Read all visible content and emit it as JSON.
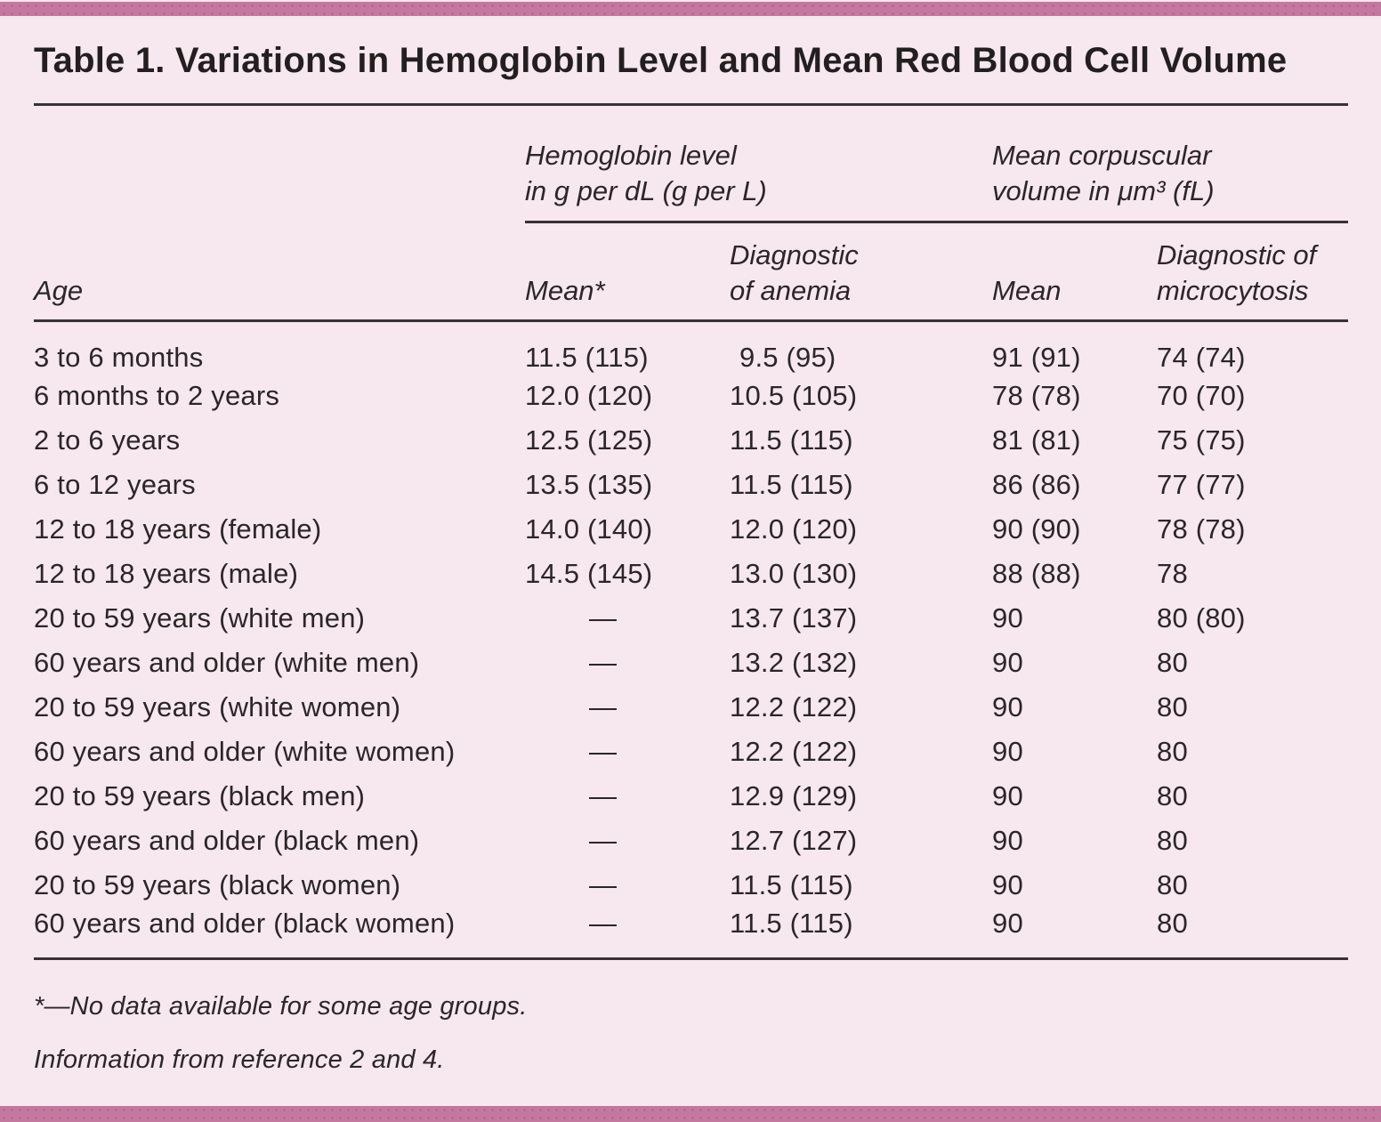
{
  "page": {
    "background_color": "#f6e8ee",
    "accent_bar_color": "#c4789f",
    "rule_color": "#383234",
    "text_color": "#2b2627"
  },
  "table": {
    "title": "Table 1. Variations in Hemoglobin Level and Mean Red Blood Cell Volume",
    "column_groups": [
      {
        "label": "Hemoglobin level\nin g per dL (g per L)"
      },
      {
        "label": "Mean corpuscular\nvolume in μm³ (fL)"
      }
    ],
    "columns": {
      "age": "Age",
      "hb_mean": "Mean*",
      "hb_diagnostic": "Diagnostic\nof anemia",
      "mcv_mean": "Mean",
      "mcv_diagnostic": "Diagnostic of\nmicrocytosis"
    },
    "rows": [
      {
        "age": "3 to 6 months",
        "hb_mean": "11.5 (115)",
        "hb_diag": "9.5 (95)",
        "mcv_mean": "91 (91)",
        "mcv_diag": "74 (74)"
      },
      {
        "age": "6 months to 2 years",
        "hb_mean": "12.0 (120)",
        "hb_diag": "10.5 (105)",
        "mcv_mean": "78 (78)",
        "mcv_diag": "70 (70)"
      },
      {
        "age": "2 to 6 years",
        "hb_mean": "12.5 (125)",
        "hb_diag": "11.5 (115)",
        "mcv_mean": "81 (81)",
        "mcv_diag": "75 (75)"
      },
      {
        "age": "6 to 12 years",
        "hb_mean": "13.5 (135)",
        "hb_diag": "11.5 (115)",
        "mcv_mean": "86 (86)",
        "mcv_diag": "77 (77)"
      },
      {
        "age": "12 to 18 years (female)",
        "hb_mean": "14.0 (140)",
        "hb_diag": "12.0 (120)",
        "mcv_mean": "90 (90)",
        "mcv_diag": "78 (78)"
      },
      {
        "age": "12 to 18 years (male)",
        "hb_mean": "14.5 (145)",
        "hb_diag": "13.0 (130)",
        "mcv_mean": "88 (88)",
        "mcv_diag": "78"
      },
      {
        "age": "20 to 59 years (white men)",
        "hb_mean": "—",
        "hb_diag": "13.7 (137)",
        "mcv_mean": "90",
        "mcv_diag": "80 (80)"
      },
      {
        "age": "60 years and older (white men)",
        "hb_mean": "—",
        "hb_diag": "13.2 (132)",
        "mcv_mean": "90",
        "mcv_diag": "80"
      },
      {
        "age": "20 to 59 years (white women)",
        "hb_mean": "—",
        "hb_diag": "12.2 (122)",
        "mcv_mean": "90",
        "mcv_diag": "80"
      },
      {
        "age": "60 years and older (white women)",
        "hb_mean": "—",
        "hb_diag": "12.2 (122)",
        "mcv_mean": "90",
        "mcv_diag": "80"
      },
      {
        "age": "20 to 59 years (black men)",
        "hb_mean": "—",
        "hb_diag": "12.9 (129)",
        "mcv_mean": "90",
        "mcv_diag": "80"
      },
      {
        "age": "60 years and older (black men)",
        "hb_mean": "—",
        "hb_diag": "12.7 (127)",
        "mcv_mean": "90",
        "mcv_diag": "80"
      },
      {
        "age": "20 to 59 years (black women)",
        "hb_mean": "—",
        "hb_diag": "11.5 (115)",
        "mcv_mean": "90",
        "mcv_diag": "80"
      },
      {
        "age": "60 years and older (black women)",
        "hb_mean": "—",
        "hb_diag": "11.5 (115)",
        "mcv_mean": "90",
        "mcv_diag": "80"
      }
    ],
    "footnotes": [
      "*—No data available for some age groups.",
      "Information from reference 2 and 4."
    ]
  }
}
